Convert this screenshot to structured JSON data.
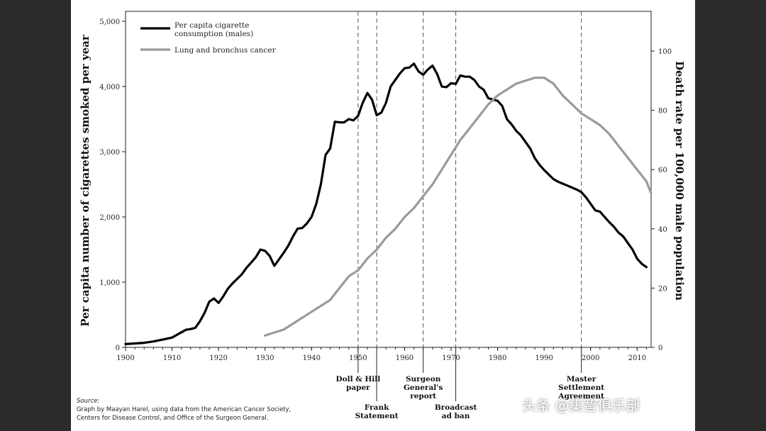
{
  "chart_data": {
    "type": "line",
    "ylabel_left": "Per capita number of cigarettes smoked per year",
    "ylabel_right": "Death rate per 100,000 male population",
    "xlim": [
      1900,
      2013
    ],
    "ylim_left": [
      0,
      5000
    ],
    "ylim_right": [
      0,
      110
    ],
    "x_ticks": [
      1900,
      1910,
      1920,
      1930,
      1940,
      1950,
      1960,
      1970,
      1980,
      1990,
      2000,
      2010
    ],
    "left_ticks": [
      0,
      1000,
      2000,
      3000,
      4000,
      5000
    ],
    "left_tick_labels": [
      "0",
      "1,000",
      "2,000",
      "3,000",
      "4,000",
      "5,000"
    ],
    "right_ticks": [
      0,
      20,
      40,
      60,
      80,
      100
    ],
    "right_tick_labels": [
      "0",
      "20",
      "40",
      "60",
      "80",
      "100"
    ],
    "legend": [
      "Per capita cigarette consumption (males)",
      "Lung and bronchus cancer"
    ],
    "series": [
      {
        "name": "Per capita cigarette consumption (males)",
        "axis": "left",
        "color": "#000000",
        "x": [
          1900,
          1902,
          1904,
          1906,
          1908,
          1910,
          1912,
          1913,
          1914,
          1915,
          1916,
          1917,
          1918,
          1919,
          1920,
          1921,
          1922,
          1923,
          1924,
          1925,
          1926,
          1927,
          1928,
          1929,
          1930,
          1931,
          1932,
          1933,
          1934,
          1935,
          1936,
          1937,
          1938,
          1939,
          1940,
          1941,
          1942,
          1943,
          1944,
          1945,
          1946,
          1947,
          1948,
          1949,
          1950,
          1951,
          1952,
          1953,
          1954,
          1955,
          1956,
          1957,
          1958,
          1959,
          1960,
          1961,
          1962,
          1963,
          1964,
          1965,
          1966,
          1967,
          1968,
          1969,
          1970,
          1971,
          1972,
          1973,
          1974,
          1975,
          1976,
          1977,
          1978,
          1979,
          1980,
          1981,
          1982,
          1983,
          1984,
          1985,
          1986,
          1987,
          1988,
          1989,
          1990,
          1991,
          1992,
          1993,
          1994,
          1995,
          1996,
          1997,
          1998,
          1999,
          2000,
          2001,
          2002,
          2003,
          2004,
          2005,
          2006,
          2007,
          2008,
          2009,
          2010,
          2011,
          2012
        ],
        "values": [
          50,
          60,
          70,
          90,
          120,
          150,
          230,
          270,
          280,
          300,
          400,
          530,
          700,
          750,
          680,
          780,
          900,
          980,
          1050,
          1120,
          1220,
          1300,
          1380,
          1500,
          1480,
          1400,
          1250,
          1350,
          1450,
          1560,
          1700,
          1820,
          1830,
          1900,
          2000,
          2200,
          2500,
          2950,
          3050,
          3460,
          3450,
          3450,
          3500,
          3480,
          3550,
          3750,
          3900,
          3800,
          3560,
          3600,
          3750,
          4000,
          4100,
          4200,
          4280,
          4290,
          4350,
          4230,
          4180,
          4260,
          4320,
          4190,
          4000,
          3990,
          4050,
          4040,
          4170,
          4150,
          4150,
          4100,
          4000,
          3950,
          3820,
          3800,
          3780,
          3700,
          3500,
          3420,
          3320,
          3250,
          3150,
          3050,
          2900,
          2800,
          2720,
          2650,
          2580,
          2540,
          2510,
          2480,
          2450,
          2420,
          2380,
          2300,
          2200,
          2100,
          2080,
          2000,
          1920,
          1850,
          1760,
          1700,
          1600,
          1500,
          1360,
          1280,
          1230
        ]
      },
      {
        "name": "Lung and bronchus cancer",
        "axis": "right",
        "color": "#9a9a9a",
        "x": [
          1930,
          1932,
          1934,
          1936,
          1938,
          1940,
          1942,
          1944,
          1946,
          1948,
          1950,
          1952,
          1954,
          1956,
          1958,
          1960,
          1962,
          1964,
          1966,
          1968,
          1970,
          1972,
          1974,
          1976,
          1978,
          1980,
          1982,
          1984,
          1986,
          1988,
          1990,
          1992,
          1994,
          1996,
          1998,
          2000,
          2002,
          2004,
          2006,
          2008,
          2010,
          2012,
          2013
        ],
        "values": [
          4,
          5,
          6,
          8,
          10,
          12,
          14,
          16,
          20,
          24,
          26,
          30,
          33,
          37,
          40,
          44,
          47,
          51,
          55,
          60,
          65,
          70,
          74,
          78,
          82,
          85,
          87,
          89,
          90,
          91,
          91,
          89,
          85,
          82,
          79,
          77,
          75,
          72,
          68,
          64,
          60,
          56,
          52
        ]
      }
    ],
    "events": [
      {
        "year": 1950,
        "label": [
          "Doll & Hill",
          "paper"
        ]
      },
      {
        "year": 1954,
        "label": [
          "Frank",
          "Statement"
        ]
      },
      {
        "year": 1964,
        "label": [
          "Surgeon",
          "General's",
          "report"
        ]
      },
      {
        "year": 1971,
        "label": [
          "Broadcast",
          "ad ban"
        ]
      },
      {
        "year": 1998,
        "label": [
          "Master",
          "Settlement",
          "Agreement"
        ]
      }
    ]
  },
  "footer": {
    "source_label": "Source:",
    "source_line1": "Graph by Maayan Harel, using data from the American Cancer Society,",
    "source_line2": "Centers for Disease Control, and Office of the Surgeon General.",
    "watermark": "头条 @集智俱乐部"
  }
}
